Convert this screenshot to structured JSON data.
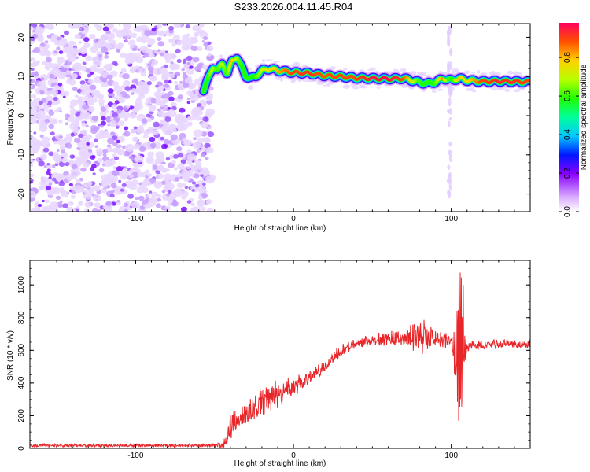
{
  "title": "S233.2026.004.11.45.R04",
  "chart_data": [
    {
      "type": "heatmap",
      "xlabel": "Height of straight line (km)",
      "ylabel": "Frequency (Hz)",
      "xlim": [
        -167,
        150
      ],
      "ylim": [
        -24.5,
        23.5
      ],
      "xticks": [
        -100,
        0,
        100
      ],
      "yticks": [
        -20,
        -10,
        0,
        10,
        20
      ],
      "noise_region_x": [
        -167,
        -55
      ],
      "ridge": {
        "x": [
          -57,
          -54,
          -51,
          -48,
          -45,
          -42,
          -39,
          -36,
          -33,
          -30,
          -27,
          -24,
          -20,
          -15,
          -10,
          -5,
          0,
          10,
          20,
          30,
          40,
          50,
          60,
          70,
          80,
          85,
          90,
          95,
          100,
          105,
          110,
          120,
          130,
          140,
          149
        ],
        "freq": [
          6.5,
          9.5,
          12.5,
          11.5,
          13.5,
          10.5,
          14,
          15,
          12.5,
          10,
          9.5,
          10,
          11.5,
          12,
          11.5,
          11.3,
          11,
          10.8,
          10.2,
          10,
          9.6,
          9.5,
          9.4,
          9.5,
          8.5,
          8.2,
          8.6,
          9.5,
          9.0,
          9.5,
          9.0,
          8.7,
          8.8,
          8.7,
          8.6
        ],
        "amplitude": [
          0.5,
          0.6,
          0.7,
          0.6,
          0.7,
          0.6,
          0.8,
          0.7,
          0.6,
          0.55,
          0.5,
          0.6,
          0.7,
          0.75,
          0.8,
          0.85,
          0.9,
          0.92,
          0.88,
          0.9,
          0.9,
          0.95,
          0.97,
          0.9,
          0.6,
          0.55,
          0.6,
          0.85,
          0.5,
          0.8,
          0.75,
          0.9,
          0.93,
          0.92,
          0.9
        ]
      },
      "colorbar": {
        "label": "Normalized spectral amplitude",
        "range": [
          0.0,
          0.98
        ],
        "ticks": [
          0.0,
          0.2,
          0.4,
          0.6,
          0.8
        ],
        "tick_labels": [
          "0.0",
          "0.2",
          "0.4",
          "0.6",
          "0.8"
        ]
      }
    },
    {
      "type": "line",
      "xlabel": "Height of straight line (km)",
      "ylabel": "SNR (10 * v/v)",
      "xlim": [
        -167,
        150
      ],
      "ylim": [
        0,
        1150
      ],
      "xticks": [
        -100,
        0,
        100
      ],
      "yticks": [
        0,
        200,
        400,
        600,
        800,
        1000
      ],
      "color": "#e8262a",
      "envelope": {
        "x": [
          -167,
          -60,
          -45,
          -42,
          -39,
          -35,
          -32,
          -28,
          -24,
          -20,
          -15,
          -10,
          -5,
          0,
          5,
          10,
          20,
          30,
          40,
          50,
          60,
          70,
          80,
          90,
          95,
          100,
          103,
          105,
          107,
          110,
          120,
          130,
          140,
          150
        ],
        "base": [
          18,
          18,
          20,
          60,
          150,
          180,
          200,
          230,
          250,
          290,
          310,
          330,
          360,
          380,
          400,
          430,
          500,
          600,
          640,
          660,
          670,
          680,
          690,
          680,
          670,
          650,
          600,
          620,
          640,
          630,
          635,
          640,
          630,
          640
        ],
        "amp": [
          12,
          12,
          20,
          60,
          140,
          80,
          100,
          90,
          100,
          100,
          110,
          110,
          80,
          70,
          60,
          50,
          40,
          40,
          40,
          40,
          50,
          60,
          120,
          80,
          60,
          40,
          300,
          600,
          550,
          40,
          35,
          35,
          35,
          35
        ]
      }
    }
  ]
}
